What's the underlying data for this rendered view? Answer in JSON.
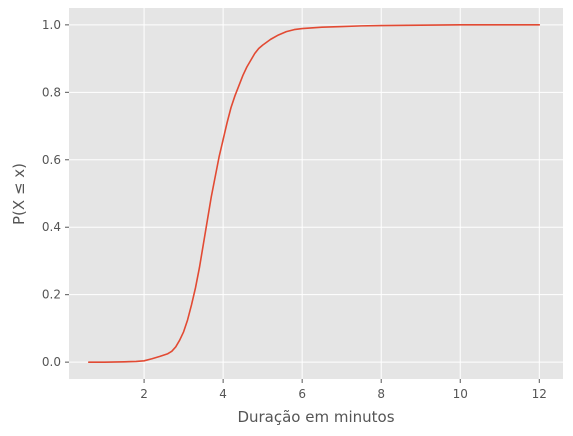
{
  "chart_data": {
    "type": "line",
    "title": "",
    "xlabel": "Duração em minutos",
    "ylabel": "P(X ≤ x)",
    "xlim": [
      0.1,
      12.6
    ],
    "ylim": [
      -0.05,
      1.05
    ],
    "xticks": [
      2,
      4,
      6,
      8,
      10,
      12
    ],
    "xtick_labels": [
      "2",
      "4",
      "6",
      "8",
      "10",
      "12"
    ],
    "yticks": [
      0.0,
      0.2,
      0.4,
      0.6,
      0.8,
      1.0
    ],
    "ytick_labels": [
      "0.0",
      "0.2",
      "0.4",
      "0.6",
      "0.8",
      "1.0"
    ],
    "grid": true,
    "legend": "none",
    "colors": {
      "background": "#e5e5e5",
      "grid": "#ffffff",
      "line": "#e24a33",
      "text": "#555555"
    },
    "series": [
      {
        "x": [
          0.6,
          1.0,
          1.5,
          1.8,
          2.0,
          2.2,
          2.4,
          2.6,
          2.7,
          2.8,
          2.9,
          3.0,
          3.1,
          3.2,
          3.3,
          3.4,
          3.5,
          3.6,
          3.7,
          3.8,
          3.9,
          4.0,
          4.1,
          4.2,
          4.3,
          4.4,
          4.5,
          4.6,
          4.7,
          4.8,
          4.9,
          5.0,
          5.2,
          5.4,
          5.6,
          5.8,
          6.0,
          6.5,
          7.0,
          7.5,
          8.0,
          9.0,
          10.0,
          11.0,
          12.0
        ],
        "y": [
          0.0,
          0.0,
          0.001,
          0.002,
          0.004,
          0.01,
          0.017,
          0.025,
          0.032,
          0.045,
          0.065,
          0.09,
          0.125,
          0.17,
          0.22,
          0.28,
          0.35,
          0.42,
          0.49,
          0.55,
          0.61,
          0.66,
          0.71,
          0.755,
          0.79,
          0.82,
          0.85,
          0.875,
          0.895,
          0.915,
          0.93,
          0.94,
          0.957,
          0.97,
          0.98,
          0.986,
          0.989,
          0.993,
          0.995,
          0.997,
          0.998,
          0.999,
          1.0,
          1.0,
          1.0
        ]
      }
    ]
  }
}
